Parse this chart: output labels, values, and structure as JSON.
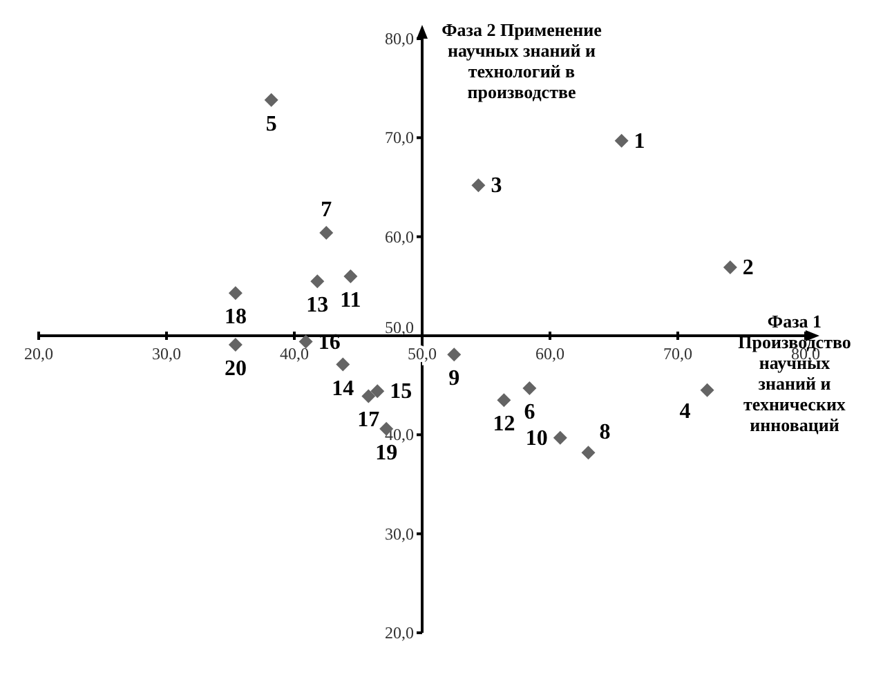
{
  "chart_data": {
    "type": "scatter",
    "xlabel": "Фаза 1 Производство научных знаний и технических инноваций",
    "ylabel": "Фаза 2 Применение научных знаний и технологий в производстве",
    "x": [
      65.6,
      74.1,
      54.4,
      72.3,
      38.2,
      58.4,
      42.5,
      63.0,
      52.5,
      60.8,
      44.4,
      56.4,
      41.8,
      43.8,
      46.5,
      40.9,
      45.8,
      35.4,
      47.2,
      35.4
    ],
    "series": [
      {
        "color": "#646464",
        "values": [
          69.7,
          56.9,
          65.2,
          44.5,
          73.8,
          44.7,
          60.4,
          38.2,
          48.1,
          39.7,
          56.0,
          43.5,
          55.5,
          47.1,
          44.4,
          49.4,
          43.9,
          54.3,
          40.6,
          49.1
        ]
      }
    ],
    "annotations": [
      {
        "text": "1",
        "x": 65.6,
        "y": 69.7
      },
      {
        "text": "2",
        "x": 74.1,
        "y": 56.9
      },
      {
        "text": "3",
        "x": 54.4,
        "y": 65.2
      },
      {
        "text": "4",
        "x": 72.3,
        "y": 44.5
      },
      {
        "text": "5",
        "x": 38.2,
        "y": 73.8
      },
      {
        "text": "6",
        "x": 58.4,
        "y": 44.7
      },
      {
        "text": "7",
        "x": 42.5,
        "y": 60.4
      },
      {
        "text": "8",
        "x": 63.0,
        "y": 38.2
      },
      {
        "text": "9",
        "x": 52.5,
        "y": 48.1
      },
      {
        "text": "10",
        "x": 60.8,
        "y": 39.7
      },
      {
        "text": "11",
        "x": 44.4,
        "y": 56.0
      },
      {
        "text": "12",
        "x": 56.4,
        "y": 43.5
      },
      {
        "text": "13",
        "x": 41.8,
        "y": 55.5
      },
      {
        "text": "14",
        "x": 43.8,
        "y": 47.1
      },
      {
        "text": "15",
        "x": 46.5,
        "y": 44.4
      },
      {
        "text": "16",
        "x": 40.9,
        "y": 49.4
      },
      {
        "text": "17",
        "x": 45.8,
        "y": 43.9
      },
      {
        "text": "18",
        "x": 35.4,
        "y": 54.3
      },
      {
        "text": "19",
        "x": 47.2,
        "y": 40.6
      },
      {
        "text": "20",
        "x": 35.4,
        "y": 49.1
      }
    ],
    "marker": "diamond",
    "grid": false,
    "legend": false,
    "xlim": [
      20,
      80
    ],
    "ylim": [
      20,
      80
    ],
    "xticks": [
      {
        "value": 20,
        "label": "20,0"
      },
      {
        "value": 30,
        "label": "30,0"
      },
      {
        "value": 40,
        "label": "40,0"
      },
      {
        "value": 50,
        "label": "50,0"
      },
      {
        "value": 60,
        "label": "60,0"
      },
      {
        "value": 70,
        "label": "70,0"
      },
      {
        "value": 80,
        "label": "80,0"
      }
    ],
    "yticks": [
      {
        "value": 20,
        "label": "20,0"
      },
      {
        "value": 30,
        "label": "30,0"
      },
      {
        "value": 40,
        "label": "40,0"
      },
      {
        "value": 50,
        "label": "50,0"
      },
      {
        "value": 60,
        "label": "60,0"
      },
      {
        "value": 70,
        "label": "70,0"
      },
      {
        "value": 80,
        "label": "80,0"
      }
    ]
  }
}
